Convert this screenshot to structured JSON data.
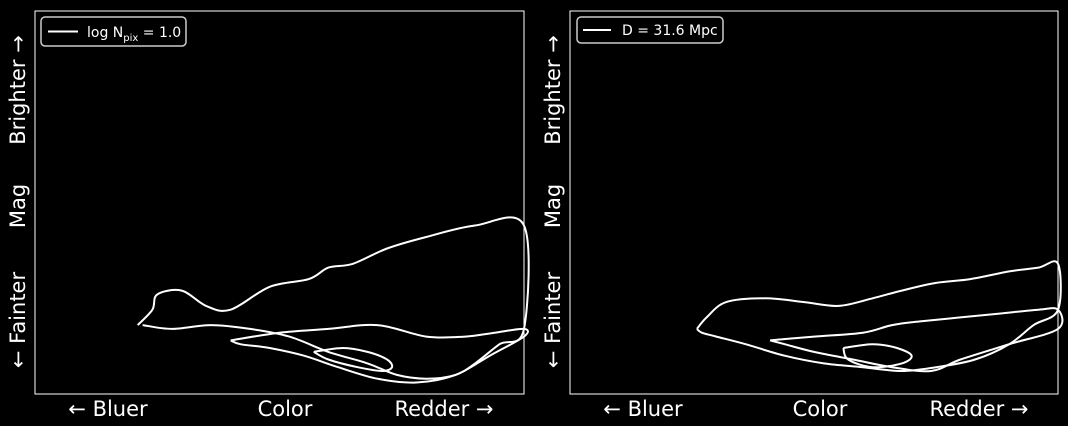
{
  "chart_data": [
    {
      "type": "contour",
      "title": "",
      "xlabel": "",
      "ylabel": "",
      "x_tick_labels": [
        "← Bluer",
        "Color",
        "Redder →"
      ],
      "y_tick_labels": [
        "← Fainter",
        "Mag",
        "Brighter →"
      ],
      "xlim": [
        0,
        1
      ],
      "ylim": [
        0,
        1
      ],
      "grid": false,
      "legend": {
        "placement": "top-left",
        "entries": [
          {
            "prefix": "log N",
            "subscript": "pix",
            "suffix": " = 1.0"
          }
        ]
      },
      "contour_levels": 3,
      "contours": [
        {
          "level": 1,
          "x": [
            0.21,
            0.24,
            0.25,
            0.3,
            0.35,
            0.4,
            0.48,
            0.56,
            0.6,
            0.65,
            0.72,
            0.8,
            0.9,
            1.0,
            1.0,
            0.95,
            0.9,
            0.86,
            0.8,
            0.74,
            0.68,
            0.6,
            0.52,
            0.44,
            0.36,
            0.28,
            0.22
          ],
          "y": [
            0.18,
            0.22,
            0.26,
            0.27,
            0.23,
            0.22,
            0.28,
            0.3,
            0.33,
            0.34,
            0.38,
            0.41,
            0.44,
            0.44,
            0.17,
            0.13,
            0.08,
            0.05,
            0.04,
            0.05,
            0.08,
            0.11,
            0.15,
            0.17,
            0.18,
            0.17,
            0.18
          ]
        },
        {
          "level": 2,
          "x": [
            0.4,
            0.5,
            0.6,
            0.7,
            0.8,
            0.88,
            0.94,
            1.0,
            1.0,
            0.93,
            0.86,
            0.78,
            0.7,
            0.62,
            0.55,
            0.48,
            0.42,
            0.4
          ],
          "y": [
            0.14,
            0.16,
            0.17,
            0.18,
            0.15,
            0.15,
            0.16,
            0.17,
            0.15,
            0.1,
            0.05,
            0.03,
            0.04,
            0.07,
            0.1,
            0.12,
            0.13,
            0.14
          ]
        },
        {
          "level": 3,
          "x": [
            0.57,
            0.63,
            0.68,
            0.72,
            0.73,
            0.71,
            0.66,
            0.6,
            0.57
          ],
          "y": [
            0.11,
            0.12,
            0.11,
            0.09,
            0.07,
            0.06,
            0.07,
            0.09,
            0.11
          ]
        }
      ]
    },
    {
      "type": "contour",
      "title": "",
      "xlabel": "",
      "ylabel": "",
      "x_tick_labels": [
        "← Bluer",
        "Color",
        "Redder →"
      ],
      "y_tick_labels": [
        "← Fainter",
        "Mag",
        "Brighter →"
      ],
      "xlim": [
        0,
        1
      ],
      "ylim": [
        0,
        1
      ],
      "grid": false,
      "legend": {
        "placement": "top-left",
        "entries": [
          {
            "prefix": "D = 31.6 Mpc",
            "subscript": "",
            "suffix": ""
          }
        ]
      },
      "contour_levels": 3,
      "contours": [
        {
          "level": 1,
          "x": [
            0.26,
            0.28,
            0.32,
            0.4,
            0.48,
            0.55,
            0.62,
            0.68,
            0.75,
            0.82,
            0.9,
            0.96,
            1.0,
            1.0,
            0.95,
            0.9,
            0.83,
            0.75,
            0.68,
            0.6,
            0.52,
            0.44,
            0.36,
            0.3,
            0.27,
            0.26
          ],
          "y": [
            0.17,
            0.2,
            0.24,
            0.25,
            0.24,
            0.23,
            0.25,
            0.27,
            0.29,
            0.3,
            0.32,
            0.33,
            0.34,
            0.22,
            0.18,
            0.13,
            0.09,
            0.07,
            0.06,
            0.07,
            0.08,
            0.1,
            0.13,
            0.15,
            0.16,
            0.17
          ]
        },
        {
          "level": 2,
          "x": [
            0.41,
            0.5,
            0.6,
            0.66,
            0.72,
            0.8,
            0.88,
            0.96,
            1.0,
            1.0,
            0.9,
            0.8,
            0.74,
            0.66,
            0.58,
            0.5,
            0.44,
            0.41
          ],
          "y": [
            0.14,
            0.15,
            0.16,
            0.18,
            0.19,
            0.2,
            0.21,
            0.22,
            0.22,
            0.17,
            0.13,
            0.09,
            0.06,
            0.07,
            0.09,
            0.11,
            0.13,
            0.14
          ]
        },
        {
          "level": 3,
          "x": [
            0.56,
            0.62,
            0.67,
            0.7,
            0.68,
            0.62,
            0.57,
            0.56
          ],
          "y": [
            0.12,
            0.13,
            0.12,
            0.1,
            0.08,
            0.07,
            0.09,
            0.12
          ]
        }
      ]
    }
  ]
}
